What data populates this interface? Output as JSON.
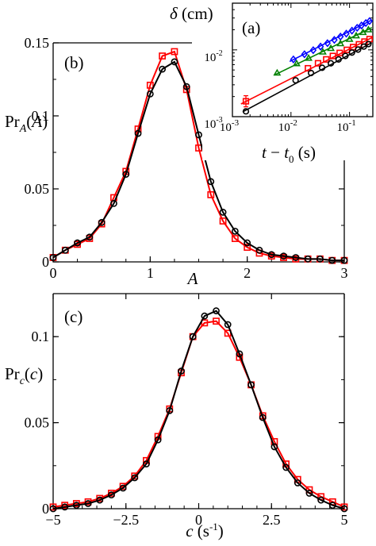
{
  "chart_data": [
    {
      "id": "a",
      "type": "scatter",
      "panel_label": "(a)",
      "ylabel": "δ (cm)",
      "xlabel": "t − t0 (s)",
      "xscale": "log",
      "yscale": "log",
      "xlim": [
        0.001,
        0.25
      ],
      "ylim": [
        0.001,
        0.05
      ],
      "xticks": [
        0.001,
        0.01,
        0.1
      ],
      "xtick_labels": [
        {
          "base": "10",
          "exp": "-3"
        },
        {
          "base": "10",
          "exp": "-2"
        },
        {
          "base": "10",
          "exp": "-1"
        }
      ],
      "yticks": [
        0.001,
        0.01
      ],
      "ytick_labels": [
        {
          "base": "10",
          "exp": "-3"
        },
        {
          "base": "10",
          "exp": "-2"
        }
      ],
      "series": [
        {
          "marker": "diamond",
          "color": "#0000ff",
          "x": [
            0.011,
            0.017,
            0.024,
            0.032,
            0.042,
            0.055,
            0.07,
            0.088,
            0.11,
            0.135,
            0.16,
            0.19,
            0.22
          ],
          "y": [
            0.0072,
            0.0086,
            0.0099,
            0.0112,
            0.0126,
            0.0141,
            0.0158,
            0.0175,
            0.0194,
            0.0214,
            0.0232,
            0.0252,
            0.027
          ],
          "fit": [
            [
              0.0095,
              0.0067
            ],
            [
              0.24,
              0.028
            ]
          ]
        },
        {
          "marker": "triangle",
          "color": "#008000",
          "x": [
            0.0058,
            0.0125,
            0.02,
            0.035,
            0.048,
            0.07,
            0.1,
            0.13,
            0.17,
            0.21
          ],
          "y": [
            0.0045,
            0.0062,
            0.0075,
            0.0093,
            0.0105,
            0.0124,
            0.0144,
            0.0162,
            0.0182,
            0.02
          ],
          "fit": [
            [
              0.0052,
              0.0042
            ],
            [
              0.24,
              0.0215
            ]
          ]
        },
        {
          "marker": "square",
          "color": "#ff0000",
          "x": [
            0.0017,
            0.0195,
            0.029,
            0.04,
            0.052,
            0.068,
            0.09,
            0.115,
            0.145,
            0.18,
            0.22
          ],
          "y": [
            0.0017,
            0.0053,
            0.0063,
            0.0072,
            0.0081,
            0.009,
            0.01,
            0.011,
            0.0121,
            0.0133,
            0.0145
          ],
          "fit": [
            [
              0.0014,
              0.00155
            ],
            [
              0.24,
              0.0152
            ]
          ]
        },
        {
          "marker": "circle",
          "color": "#000000",
          "x": [
            0.0017,
            0.012,
            0.022,
            0.034,
            0.048,
            0.065,
            0.085,
            0.11,
            0.14,
            0.175,
            0.21
          ],
          "y": [
            0.0012,
            0.0035,
            0.0045,
            0.0054,
            0.0063,
            0.0072,
            0.0081,
            0.0091,
            0.0101,
            0.0112,
            0.0122
          ],
          "fit": [
            [
              0.0015,
              0.00118
            ],
            [
              0.24,
              0.0128
            ]
          ]
        }
      ]
    },
    {
      "id": "b",
      "type": "line",
      "panel_label": "(b)",
      "xlabel": "A",
      "ylabel": "Pr_A(A)",
      "xlim": [
        0,
        3
      ],
      "ylim": [
        0,
        0.15
      ],
      "xticks": [
        0,
        1,
        2,
        3
      ],
      "xtick_labels": [
        "0",
        "1",
        "2",
        "3"
      ],
      "yticks": [
        0,
        0.05,
        0.1,
        0.15
      ],
      "ytick_labels": [
        "0",
        "0.05",
        "0.1",
        "0.15"
      ],
      "series": [
        {
          "marker": "square",
          "color": "#ff0000",
          "x": [
            0,
            0.125,
            0.25,
            0.375,
            0.5,
            0.625,
            0.75,
            0.875,
            1.0,
            1.125,
            1.25,
            1.375,
            1.5,
            1.625,
            1.75,
            1.875,
            2.0,
            2.125,
            2.25,
            2.375,
            2.5,
            2.625,
            2.75,
            2.875,
            3.0
          ],
          "y": [
            0.003,
            0.008,
            0.012,
            0.016,
            0.026,
            0.044,
            0.062,
            0.091,
            0.121,
            0.141,
            0.144,
            0.118,
            0.078,
            0.046,
            0.028,
            0.016,
            0.01,
            0.006,
            0.004,
            0.003,
            0.002,
            0.002,
            0.002,
            0.001,
            0.001
          ]
        },
        {
          "marker": "circle",
          "color": "#000000",
          "x": [
            0,
            0.125,
            0.25,
            0.375,
            0.5,
            0.625,
            0.75,
            0.875,
            1.0,
            1.125,
            1.25,
            1.375,
            1.5,
            1.625,
            1.75,
            1.875,
            2.0,
            2.125,
            2.25,
            2.375,
            2.5,
            2.625,
            2.75,
            2.875,
            3.0
          ],
          "y": [
            0.003,
            0.008,
            0.013,
            0.017,
            0.027,
            0.04,
            0.06,
            0.088,
            0.115,
            0.132,
            0.137,
            0.12,
            0.087,
            0.055,
            0.034,
            0.021,
            0.013,
            0.008,
            0.005,
            0.004,
            0.003,
            0.002,
            0.002,
            0.001,
            0.001
          ]
        }
      ]
    },
    {
      "id": "c",
      "type": "line",
      "panel_label": "(c)",
      "xlabel": "c (s⁻¹)",
      "ylabel": "Pr_c(c)",
      "xlim": [
        -5,
        5
      ],
      "ylim": [
        0,
        0.125
      ],
      "xticks": [
        -5,
        -2.5,
        0,
        2.5,
        5
      ],
      "xtick_labels": [
        "−5",
        "−2.5",
        "0",
        "2.5",
        "5"
      ],
      "yticks": [
        0,
        0.05,
        0.1
      ],
      "ytick_labels": [
        "0",
        "0.05",
        "0.1"
      ],
      "series": [
        {
          "marker": "square",
          "color": "#ff0000",
          "x": [
            -5,
            -4.6,
            -4.2,
            -3.8,
            -3.4,
            -3.0,
            -2.6,
            -2.2,
            -1.8,
            -1.4,
            -1.0,
            -0.6,
            -0.2,
            0.2,
            0.6,
            1.0,
            1.4,
            1.8,
            2.2,
            2.6,
            3.0,
            3.4,
            3.8,
            4.2,
            4.6,
            5.0
          ],
          "y": [
            0.001,
            0.002,
            0.003,
            0.004,
            0.006,
            0.009,
            0.013,
            0.019,
            0.028,
            0.042,
            0.058,
            0.079,
            0.1,
            0.108,
            0.109,
            0.102,
            0.088,
            0.072,
            0.054,
            0.039,
            0.026,
            0.017,
            0.011,
            0.007,
            0.004,
            0.001
          ]
        },
        {
          "marker": "circle",
          "color": "#000000",
          "x": [
            -5,
            -4.6,
            -4.2,
            -3.8,
            -3.4,
            -3.0,
            -2.6,
            -2.2,
            -1.8,
            -1.4,
            -1.0,
            -0.6,
            -0.2,
            0.2,
            0.6,
            1.0,
            1.4,
            1.8,
            2.2,
            2.6,
            3.0,
            3.4,
            3.8,
            4.2,
            4.6,
            5.0
          ],
          "y": [
            0.0,
            0.001,
            0.002,
            0.003,
            0.005,
            0.008,
            0.012,
            0.018,
            0.026,
            0.04,
            0.057,
            0.08,
            0.1,
            0.112,
            0.115,
            0.107,
            0.09,
            0.072,
            0.053,
            0.036,
            0.024,
            0.015,
            0.009,
            0.005,
            0.002,
            0.0
          ]
        }
      ]
    }
  ]
}
